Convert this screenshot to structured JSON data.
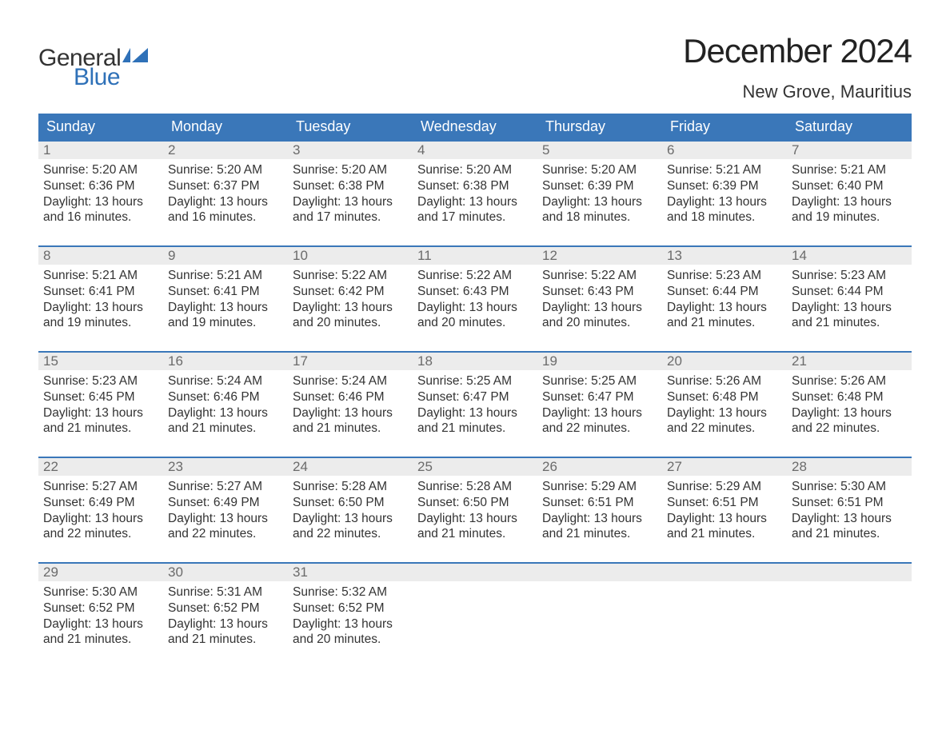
{
  "colors": {
    "header_bg": "#3a77b9",
    "header_text": "#ffffff",
    "day_row_bg": "#ececec",
    "day_num_color": "#6b6b6b",
    "body_text": "#333333",
    "cell_top_border": "#3a77b9",
    "logo_blue": "#2f71b8",
    "page_bg": "#ffffff"
  },
  "typography": {
    "title_fontsize": 42,
    "location_fontsize": 22,
    "weekday_fontsize": 18,
    "daynum_fontsize": 17,
    "body_fontsize": 15.5,
    "logo_fontsize": 30
  },
  "logo": {
    "line1": "General",
    "line2": "Blue"
  },
  "title": "December 2024",
  "location": "New Grove, Mauritius",
  "weekdays": [
    "Sunday",
    "Monday",
    "Tuesday",
    "Wednesday",
    "Thursday",
    "Friday",
    "Saturday"
  ],
  "labels": {
    "sunrise_prefix": "Sunrise: ",
    "sunset_prefix": "Sunset: ",
    "daylight_prefix": "Daylight: ",
    "and_word": " and ",
    "hours_word": " hours",
    "minutes_word": " minutes."
  },
  "days": [
    {
      "n": 1,
      "sunrise": "5:20 AM",
      "sunset": "6:36 PM",
      "dl_h": 13,
      "dl_m": 16
    },
    {
      "n": 2,
      "sunrise": "5:20 AM",
      "sunset": "6:37 PM",
      "dl_h": 13,
      "dl_m": 16
    },
    {
      "n": 3,
      "sunrise": "5:20 AM",
      "sunset": "6:38 PM",
      "dl_h": 13,
      "dl_m": 17
    },
    {
      "n": 4,
      "sunrise": "5:20 AM",
      "sunset": "6:38 PM",
      "dl_h": 13,
      "dl_m": 17
    },
    {
      "n": 5,
      "sunrise": "5:20 AM",
      "sunset": "6:39 PM",
      "dl_h": 13,
      "dl_m": 18
    },
    {
      "n": 6,
      "sunrise": "5:21 AM",
      "sunset": "6:39 PM",
      "dl_h": 13,
      "dl_m": 18
    },
    {
      "n": 7,
      "sunrise": "5:21 AM",
      "sunset": "6:40 PM",
      "dl_h": 13,
      "dl_m": 19
    },
    {
      "n": 8,
      "sunrise": "5:21 AM",
      "sunset": "6:41 PM",
      "dl_h": 13,
      "dl_m": 19
    },
    {
      "n": 9,
      "sunrise": "5:21 AM",
      "sunset": "6:41 PM",
      "dl_h": 13,
      "dl_m": 19
    },
    {
      "n": 10,
      "sunrise": "5:22 AM",
      "sunset": "6:42 PM",
      "dl_h": 13,
      "dl_m": 20
    },
    {
      "n": 11,
      "sunrise": "5:22 AM",
      "sunset": "6:43 PM",
      "dl_h": 13,
      "dl_m": 20
    },
    {
      "n": 12,
      "sunrise": "5:22 AM",
      "sunset": "6:43 PM",
      "dl_h": 13,
      "dl_m": 20
    },
    {
      "n": 13,
      "sunrise": "5:23 AM",
      "sunset": "6:44 PM",
      "dl_h": 13,
      "dl_m": 21
    },
    {
      "n": 14,
      "sunrise": "5:23 AM",
      "sunset": "6:44 PM",
      "dl_h": 13,
      "dl_m": 21
    },
    {
      "n": 15,
      "sunrise": "5:23 AM",
      "sunset": "6:45 PM",
      "dl_h": 13,
      "dl_m": 21
    },
    {
      "n": 16,
      "sunrise": "5:24 AM",
      "sunset": "6:46 PM",
      "dl_h": 13,
      "dl_m": 21
    },
    {
      "n": 17,
      "sunrise": "5:24 AM",
      "sunset": "6:46 PM",
      "dl_h": 13,
      "dl_m": 21
    },
    {
      "n": 18,
      "sunrise": "5:25 AM",
      "sunset": "6:47 PM",
      "dl_h": 13,
      "dl_m": 21
    },
    {
      "n": 19,
      "sunrise": "5:25 AM",
      "sunset": "6:47 PM",
      "dl_h": 13,
      "dl_m": 22
    },
    {
      "n": 20,
      "sunrise": "5:26 AM",
      "sunset": "6:48 PM",
      "dl_h": 13,
      "dl_m": 22
    },
    {
      "n": 21,
      "sunrise": "5:26 AM",
      "sunset": "6:48 PM",
      "dl_h": 13,
      "dl_m": 22
    },
    {
      "n": 22,
      "sunrise": "5:27 AM",
      "sunset": "6:49 PM",
      "dl_h": 13,
      "dl_m": 22
    },
    {
      "n": 23,
      "sunrise": "5:27 AM",
      "sunset": "6:49 PM",
      "dl_h": 13,
      "dl_m": 22
    },
    {
      "n": 24,
      "sunrise": "5:28 AM",
      "sunset": "6:50 PM",
      "dl_h": 13,
      "dl_m": 22
    },
    {
      "n": 25,
      "sunrise": "5:28 AM",
      "sunset": "6:50 PM",
      "dl_h": 13,
      "dl_m": 21
    },
    {
      "n": 26,
      "sunrise": "5:29 AM",
      "sunset": "6:51 PM",
      "dl_h": 13,
      "dl_m": 21
    },
    {
      "n": 27,
      "sunrise": "5:29 AM",
      "sunset": "6:51 PM",
      "dl_h": 13,
      "dl_m": 21
    },
    {
      "n": 28,
      "sunrise": "5:30 AM",
      "sunset": "6:51 PM",
      "dl_h": 13,
      "dl_m": 21
    },
    {
      "n": 29,
      "sunrise": "5:30 AM",
      "sunset": "6:52 PM",
      "dl_h": 13,
      "dl_m": 21
    },
    {
      "n": 30,
      "sunrise": "5:31 AM",
      "sunset": "6:52 PM",
      "dl_h": 13,
      "dl_m": 21
    },
    {
      "n": 31,
      "sunrise": "5:32 AM",
      "sunset": "6:52 PM",
      "dl_h": 13,
      "dl_m": 20
    }
  ],
  "start_weekday": 0,
  "weeks": 5
}
